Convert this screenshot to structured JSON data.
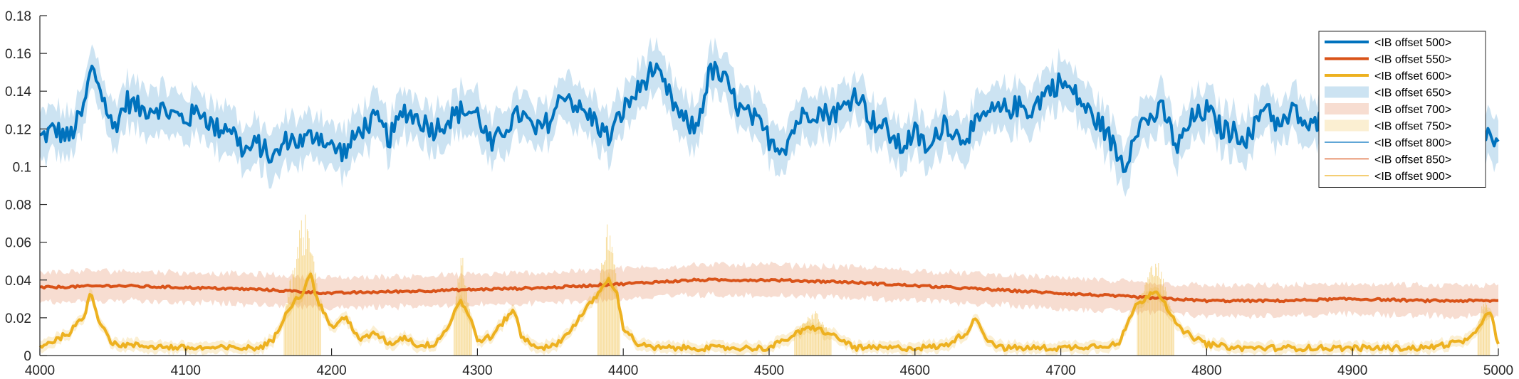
{
  "chart_data": {
    "type": "line",
    "xlim": [
      4000,
      5000
    ],
    "ylim": [
      0,
      0.18
    ],
    "x_ticks": [
      4000,
      4100,
      4200,
      4300,
      4400,
      4500,
      4600,
      4700,
      4800,
      4900,
      5000
    ],
    "x_tick_labels": [
      "4000",
      "4100",
      "4200",
      "4300",
      "4400",
      "4500",
      "4600",
      "4700",
      "4800",
      "4900",
      "5000"
    ],
    "y_ticks": [
      0,
      0.02,
      0.04,
      0.06,
      0.08,
      0.1,
      0.12,
      0.14,
      0.16,
      0.18
    ],
    "y_tick_labels": [
      "0",
      "0.02",
      "0.04",
      "0.06",
      "0.08",
      "0.1",
      "0.12",
      "0.14",
      "0.16",
      "0.18"
    ],
    "grid": false,
    "legend_position": "top-right",
    "colors": {
      "blue": "#0072bd",
      "red": "#d95319",
      "yellow": "#edb120"
    },
    "legend": [
      {
        "label": "<IB offset 500>",
        "kind": "line-thick",
        "color": "#0072bd"
      },
      {
        "label": "<IB offset 550>",
        "kind": "line-thick",
        "color": "#d95319"
      },
      {
        "label": "<IB offset 600>",
        "kind": "line-thick",
        "color": "#edb120"
      },
      {
        "label": "<IB offset 650>",
        "kind": "patch",
        "color": "#0072bd"
      },
      {
        "label": "<IB offset 700>",
        "kind": "patch",
        "color": "#d95319"
      },
      {
        "label": "<IB offset 750>",
        "kind": "patch",
        "color": "#edb120"
      },
      {
        "label": "<IB offset 800>",
        "kind": "line-thin",
        "color": "#0072bd"
      },
      {
        "label": "<IB offset 850>",
        "kind": "line-thin",
        "color": "#d95319"
      },
      {
        "label": "<IB offset 900>",
        "kind": "line-thin",
        "color": "#edb120"
      }
    ],
    "series": [
      {
        "color": "#0072bd",
        "x": [
          4000,
          4010,
          4020,
          4030,
          4035,
          4040,
          4050,
          4060,
          4070,
          4080,
          4090,
          4100,
          4110,
          4120,
          4130,
          4140,
          4150,
          4160,
          4170,
          4180,
          4190,
          4200,
          4210,
          4220,
          4230,
          4240,
          4250,
          4260,
          4270,
          4280,
          4290,
          4300,
          4310,
          4320,
          4330,
          4340,
          4350,
          4360,
          4370,
          4380,
          4390,
          4400,
          4410,
          4420,
          4430,
          4440,
          4450,
          4460,
          4470,
          4480,
          4490,
          4500,
          4510,
          4520,
          4530,
          4540,
          4550,
          4560,
          4570,
          4580,
          4590,
          4600,
          4610,
          4620,
          4630,
          4640,
          4650,
          4660,
          4670,
          4680,
          4690,
          4700,
          4710,
          4720,
          4730,
          4740,
          4745,
          4750,
          4760,
          4770,
          4780,
          4790,
          4800,
          4810,
          4820,
          4830,
          4840,
          4850,
          4860,
          4870,
          4880,
          4890,
          4900,
          4910,
          4920,
          4930,
          4940,
          4950,
          4960,
          4970,
          4980,
          4990,
          5000
        ],
        "y": [
          0.115,
          0.12,
          0.115,
          0.13,
          0.152,
          0.145,
          0.12,
          0.135,
          0.13,
          0.132,
          0.128,
          0.125,
          0.13,
          0.12,
          0.122,
          0.108,
          0.112,
          0.104,
          0.115,
          0.113,
          0.118,
          0.11,
          0.108,
          0.12,
          0.125,
          0.115,
          0.13,
          0.125,
          0.12,
          0.125,
          0.13,
          0.128,
          0.11,
          0.122,
          0.128,
          0.118,
          0.125,
          0.14,
          0.13,
          0.125,
          0.115,
          0.13,
          0.14,
          0.152,
          0.14,
          0.125,
          0.12,
          0.152,
          0.145,
          0.13,
          0.125,
          0.115,
          0.11,
          0.125,
          0.13,
          0.128,
          0.13,
          0.14,
          0.125,
          0.12,
          0.11,
          0.118,
          0.108,
          0.125,
          0.115,
          0.12,
          0.128,
          0.13,
          0.132,
          0.13,
          0.14,
          0.145,
          0.138,
          0.128,
          0.12,
          0.105,
          0.1,
          0.12,
          0.125,
          0.13,
          0.11,
          0.125,
          0.13,
          0.12,
          0.118,
          0.115,
          0.135,
          0.12,
          0.13,
          0.12,
          0.125,
          0.12,
          0.115,
          0.125,
          0.12,
          0.132,
          0.118,
          0.125,
          0.135,
          0.12,
          0.128,
          0.12,
          0.11
        ],
        "band_halfwidth": 0.012,
        "noise": 0.006
      },
      {
        "color": "#d95319",
        "x": [
          4000,
          4050,
          4100,
          4150,
          4200,
          4250,
          4300,
          4350,
          4400,
          4450,
          4500,
          4550,
          4600,
          4650,
          4700,
          4750,
          4800,
          4850,
          4900,
          4950,
          5000
        ],
        "y": [
          0.036,
          0.037,
          0.036,
          0.035,
          0.033,
          0.034,
          0.035,
          0.036,
          0.038,
          0.04,
          0.04,
          0.039,
          0.037,
          0.035,
          0.033,
          0.031,
          0.029,
          0.029,
          0.03,
          0.029,
          0.029
        ],
        "band_halfwidth": 0.008,
        "noise": 0.0006
      },
      {
        "color": "#edb120",
        "x": [
          4000,
          4010,
          4020,
          4030,
          4035,
          4040,
          4050,
          4100,
          4150,
          4160,
          4170,
          4180,
          4185,
          4190,
          4200,
          4210,
          4220,
          4230,
          4240,
          4250,
          4260,
          4270,
          4280,
          4288,
          4295,
          4300,
          4310,
          4320,
          4325,
          4330,
          4340,
          4350,
          4360,
          4370,
          4380,
          4390,
          4395,
          4400,
          4410,
          4420,
          4450,
          4500,
          4510,
          4520,
          4530,
          4540,
          4550,
          4560,
          4600,
          4620,
          4635,
          4642,
          4650,
          4660,
          4700,
          4740,
          4750,
          4760,
          4765,
          4770,
          4780,
          4790,
          4800,
          4810,
          4820,
          4850,
          4900,
          4950,
          4980,
          4990,
          4995,
          5000
        ],
        "y": [
          0.005,
          0.008,
          0.012,
          0.02,
          0.034,
          0.02,
          0.006,
          0.004,
          0.004,
          0.008,
          0.025,
          0.033,
          0.044,
          0.03,
          0.015,
          0.02,
          0.008,
          0.012,
          0.006,
          0.01,
          0.005,
          0.006,
          0.015,
          0.03,
          0.02,
          0.008,
          0.01,
          0.02,
          0.025,
          0.01,
          0.005,
          0.004,
          0.01,
          0.02,
          0.03,
          0.04,
          0.035,
          0.015,
          0.006,
          0.004,
          0.004,
          0.004,
          0.008,
          0.012,
          0.015,
          0.012,
          0.008,
          0.004,
          0.004,
          0.005,
          0.012,
          0.02,
          0.008,
          0.004,
          0.004,
          0.006,
          0.025,
          0.032,
          0.035,
          0.03,
          0.015,
          0.01,
          0.006,
          0.005,
          0.004,
          0.004,
          0.004,
          0.004,
          0.008,
          0.02,
          0.022,
          0.005
        ],
        "spikes": [
          {
            "x": 4180,
            "width": 25,
            "height": 0.045
          },
          {
            "x": 4290,
            "width": 12,
            "height": 0.03
          },
          {
            "x": 4390,
            "width": 15,
            "height": 0.04
          },
          {
            "x": 4530,
            "width": 25,
            "height": 0.012
          },
          {
            "x": 4765,
            "width": 25,
            "height": 0.02
          },
          {
            "x": 4990,
            "width": 8,
            "height": 0.015
          }
        ],
        "band_halfwidth": 0.003,
        "noise": 0.0015
      }
    ]
  }
}
